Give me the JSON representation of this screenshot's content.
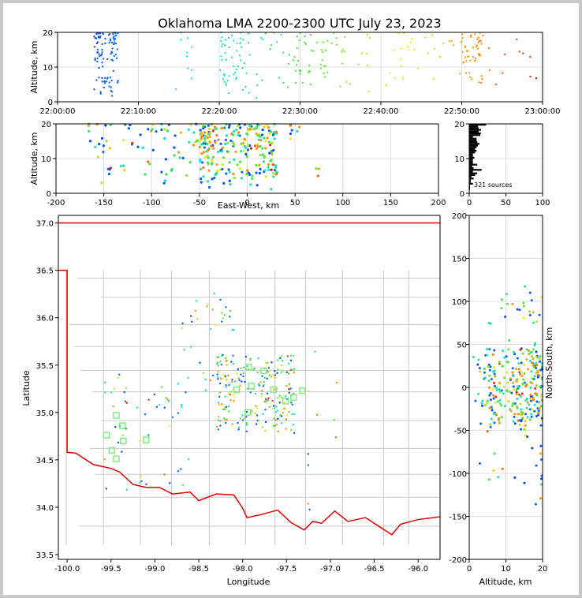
{
  "chart_data": [
    {
      "id": "time_height",
      "type": "scatter",
      "title": "Oklahoma LMA 2200-2300 UTC July 23, 2023",
      "xlabel": "",
      "ylabel": "Altitude, km",
      "x_ticks": [
        "22:00:00",
        "22:10:00",
        "22:20:00",
        "22:30:00",
        "22:40:00",
        "22:50:00",
        "23:00:00"
      ],
      "xlim_minutes": [
        0,
        60
      ],
      "ylim": [
        0,
        20
      ],
      "y_ticks": [
        0,
        10,
        20
      ],
      "grid": true,
      "color_encoding": "time (blue→cyan→green→yellow→red)",
      "clusters": [
        {
          "time_min": [
            4.5,
            7.5
          ],
          "alt": [
            1,
            20
          ],
          "n": 95
        },
        {
          "time_min": [
            14.5,
            17
          ],
          "alt": [
            1,
            20
          ],
          "n": 10
        },
        {
          "time_min": [
            20,
            23
          ],
          "alt": [
            1,
            20
          ],
          "n": 45
        },
        {
          "time_min": [
            23,
            29
          ],
          "alt": [
            1,
            20
          ],
          "n": 25
        },
        {
          "time_min": [
            29,
            34
          ],
          "alt": [
            2,
            20
          ],
          "n": 40
        },
        {
          "time_min": [
            34,
            43
          ],
          "alt": [
            1,
            20
          ],
          "n": 30
        },
        {
          "time_min": [
            43,
            50
          ],
          "alt": [
            5,
            20
          ],
          "n": 18
        },
        {
          "time_min": [
            50,
            52.5
          ],
          "alt": [
            3,
            20
          ],
          "n": 45
        },
        {
          "time_min": [
            52.5,
            60
          ],
          "alt": [
            4,
            20
          ],
          "n": 13
        }
      ]
    },
    {
      "id": "ew_height",
      "type": "scatter",
      "xlabel": "East-West, km",
      "ylabel": "Altitude, km",
      "xlim": [
        -200,
        200
      ],
      "x_ticks": [
        -200,
        -150,
        -100,
        -50,
        0,
        50,
        100,
        150,
        200
      ],
      "ylim": [
        0,
        20
      ],
      "y_ticks": [
        0,
        10,
        20
      ],
      "grid": true
    },
    {
      "id": "alt_histogram",
      "type": "bar",
      "xlim": [
        0,
        100
      ],
      "x_ticks": [
        0,
        50,
        100
      ],
      "ylim": [
        0,
        20
      ],
      "y_ticks": [
        0,
        10,
        20
      ],
      "annotation": "321 sources",
      "grid": true
    },
    {
      "id": "plan_view",
      "type": "scatter",
      "xlabel": "Longitude",
      "ylabel": "Latitude",
      "xlim": [
        -100.1,
        -95.75
      ],
      "ylim": [
        33.45,
        37.08
      ],
      "x_ticks": [
        -100.0,
        -99.5,
        -99.0,
        -98.5,
        -98.0,
        -97.5,
        -97.0,
        -96.5,
        -96.0
      ],
      "y_ticks": [
        33.5,
        34.0,
        34.5,
        35.0,
        35.5,
        36.0,
        36.5,
        37.0
      ],
      "y_right_label": "North-South, km",
      "y_right_lim": [
        -200,
        200
      ],
      "y_right_ticks": [
        -200,
        -150,
        -100,
        -50,
        0,
        50,
        100,
        150,
        200
      ],
      "grid": false,
      "stations": [
        {
          "lon": -99.44,
          "lat": 34.97
        },
        {
          "lon": -99.37,
          "lat": 34.86
        },
        {
          "lon": -99.55,
          "lat": 34.76
        },
        {
          "lon": -99.36,
          "lat": 34.7
        },
        {
          "lon": -99.49,
          "lat": 34.6
        },
        {
          "lon": -99.44,
          "lat": 34.51
        },
        {
          "lon": -99.1,
          "lat": 34.71
        },
        {
          "lon": -97.93,
          "lat": 35.48
        },
        {
          "lon": -97.76,
          "lat": 35.44
        },
        {
          "lon": -97.9,
          "lat": 35.28
        },
        {
          "lon": -98.07,
          "lat": 35.24
        },
        {
          "lon": -97.65,
          "lat": 35.24
        },
        {
          "lon": -97.32,
          "lat": 35.23
        },
        {
          "lon": -97.42,
          "lat": 35.16
        },
        {
          "lon": -97.51,
          "lat": 35.12
        },
        {
          "lon": -97.94,
          "lat": 35.0
        }
      ],
      "clusters": [
        {
          "lon": [
            -98.3,
            -97.4
          ],
          "lat": [
            34.8,
            35.6
          ],
          "n": 170
        },
        {
          "lon": [
            -99.6,
            -98.6
          ],
          "lat": [
            34.1,
            35.4
          ],
          "n": 45
        },
        {
          "lon": [
            -98.7,
            -98.1
          ],
          "lat": [
            35.0,
            36.3
          ],
          "n": 30
        },
        {
          "lon": [
            -97.5,
            -96.9
          ],
          "lat": [
            33.6,
            35.7
          ],
          "n": 10
        }
      ]
    },
    {
      "id": "ns_height",
      "type": "scatter",
      "xlabel": "Altitude, km",
      "ylabel": "North-South, km",
      "xlim": [
        0,
        20
      ],
      "x_ticks": [
        0,
        10,
        20
      ],
      "ylim": [
        -200,
        200
      ],
      "y_ticks": [
        -200,
        -150,
        -100,
        -50,
        0,
        50,
        100,
        150,
        200
      ],
      "grid": true
    }
  ]
}
